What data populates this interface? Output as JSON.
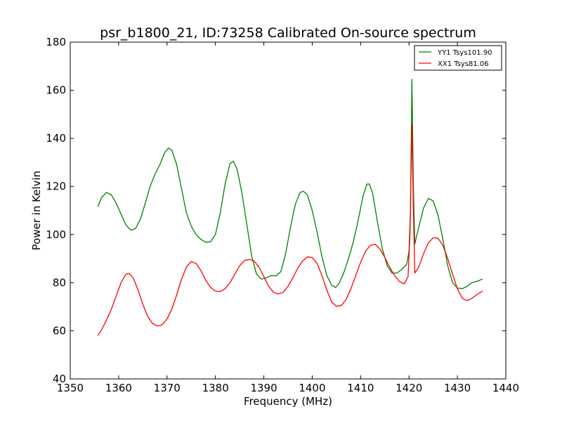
{
  "chart_data": {
    "type": "line",
    "title": "psr_b1800_21, ID:73258 Calibrated On-source spectrum",
    "xlabel": "Frequency (MHz)",
    "ylabel": "Power in Kelvin",
    "xlim": [
      1350,
      1440
    ],
    "ylim": [
      40,
      180
    ],
    "x_ticks": [
      "1350",
      "1360",
      "1370",
      "1380",
      "1390",
      "1400",
      "1410",
      "1420",
      "1430",
      "1440"
    ],
    "y_ticks": [
      "40",
      "60",
      "80",
      "100",
      "120",
      "140",
      "160",
      "180"
    ],
    "grid": false,
    "legend_position": "top-right",
    "series": [
      {
        "name": "YY1 Tsys101.90",
        "color": "#008000",
        "points": [
          [
            1355.7,
            111.5
          ],
          [
            1356.5,
            115.5
          ],
          [
            1357.5,
            117.5
          ],
          [
            1358.5,
            116.5
          ],
          [
            1359.5,
            113
          ],
          [
            1360.5,
            108.5
          ],
          [
            1361.5,
            104
          ],
          [
            1362.5,
            101.8
          ],
          [
            1363.5,
            102.5
          ],
          [
            1364.5,
            106.5
          ],
          [
            1365.5,
            113
          ],
          [
            1366.5,
            120
          ],
          [
            1367.5,
            125
          ],
          [
            1368.5,
            129
          ],
          [
            1369.5,
            134
          ],
          [
            1370.3,
            136
          ],
          [
            1371,
            135
          ],
          [
            1372,
            129
          ],
          [
            1373,
            119
          ],
          [
            1374,
            109
          ],
          [
            1375,
            103.5
          ],
          [
            1376,
            100
          ],
          [
            1377,
            98
          ],
          [
            1378,
            96.8
          ],
          [
            1379,
            97
          ],
          [
            1380,
            100
          ],
          [
            1381,
            109
          ],
          [
            1382,
            121
          ],
          [
            1383,
            129.5
          ],
          [
            1383.7,
            130.5
          ],
          [
            1384.5,
            127
          ],
          [
            1385.5,
            117
          ],
          [
            1386.5,
            104
          ],
          [
            1387.5,
            91
          ],
          [
            1388.5,
            83.5
          ],
          [
            1389.5,
            81.5
          ],
          [
            1390.5,
            82
          ],
          [
            1391.5,
            83
          ],
          [
            1392.5,
            82.8
          ],
          [
            1393.5,
            84.5
          ],
          [
            1394.5,
            92
          ],
          [
            1395.5,
            103
          ],
          [
            1396.5,
            112.5
          ],
          [
            1397.5,
            117.5
          ],
          [
            1398.2,
            118
          ],
          [
            1399,
            116.5
          ],
          [
            1400,
            110
          ],
          [
            1401,
            101
          ],
          [
            1402,
            91
          ],
          [
            1403,
            83
          ],
          [
            1404,
            79
          ],
          [
            1404.8,
            78
          ],
          [
            1405.5,
            79.5
          ],
          [
            1406.5,
            84
          ],
          [
            1407.5,
            90
          ],
          [
            1408.5,
            97
          ],
          [
            1409.5,
            106
          ],
          [
            1410.5,
            116
          ],
          [
            1411.3,
            121
          ],
          [
            1411.8,
            121
          ],
          [
            1412.5,
            117
          ],
          [
            1413.5,
            105
          ],
          [
            1414.5,
            94
          ],
          [
            1415.5,
            87
          ],
          [
            1416.5,
            84
          ],
          [
            1417.5,
            84
          ],
          [
            1418.5,
            85.5
          ],
          [
            1419.5,
            87.5
          ],
          [
            1420,
            93
          ],
          [
            1420.3,
            110
          ],
          [
            1420.6,
            164.5
          ],
          [
            1420.9,
            120
          ],
          [
            1421.2,
            96
          ],
          [
            1422,
            103
          ],
          [
            1423,
            111
          ],
          [
            1424,
            115
          ],
          [
            1425,
            114
          ],
          [
            1426,
            108
          ],
          [
            1427,
            98
          ],
          [
            1428,
            87
          ],
          [
            1429,
            80
          ],
          [
            1430,
            77.8
          ],
          [
            1431,
            77.5
          ],
          [
            1432,
            78.5
          ],
          [
            1433,
            80
          ],
          [
            1434,
            80.5
          ],
          [
            1435.2,
            81.5
          ]
        ]
      },
      {
        "name": "XX1 Tsys81.06",
        "color": "#ff0000",
        "points": [
          [
            1355.7,
            58
          ],
          [
            1356.5,
            60.5
          ],
          [
            1357.5,
            64.5
          ],
          [
            1358.5,
            69
          ],
          [
            1359.5,
            74.5
          ],
          [
            1360.5,
            80
          ],
          [
            1361.5,
            83.5
          ],
          [
            1362.2,
            83.8
          ],
          [
            1363,
            82
          ],
          [
            1364,
            77
          ],
          [
            1365,
            71
          ],
          [
            1366,
            66
          ],
          [
            1367,
            63
          ],
          [
            1368,
            62
          ],
          [
            1369,
            62.5
          ],
          [
            1370,
            65
          ],
          [
            1371,
            69
          ],
          [
            1372,
            75
          ],
          [
            1373,
            81.5
          ],
          [
            1374,
            86.5
          ],
          [
            1375,
            88.8
          ],
          [
            1376,
            88
          ],
          [
            1377,
            85
          ],
          [
            1378,
            81
          ],
          [
            1379,
            78
          ],
          [
            1380,
            76.5
          ],
          [
            1381,
            76.3
          ],
          [
            1382,
            77.5
          ],
          [
            1383,
            80
          ],
          [
            1384,
            83.5
          ],
          [
            1385,
            87
          ],
          [
            1386,
            89.2
          ],
          [
            1387,
            89.7
          ],
          [
            1388,
            89
          ],
          [
            1389,
            86.5
          ],
          [
            1390,
            82.5
          ],
          [
            1391,
            78.5
          ],
          [
            1392,
            76
          ],
          [
            1393,
            75.3
          ],
          [
            1394,
            76
          ],
          [
            1395,
            78.5
          ],
          [
            1396,
            82
          ],
          [
            1397,
            86
          ],
          [
            1398,
            89
          ],
          [
            1399,
            90.7
          ],
          [
            1400,
            90.5
          ],
          [
            1401,
            88
          ],
          [
            1402,
            83
          ],
          [
            1403,
            77
          ],
          [
            1404,
            72
          ],
          [
            1405,
            70.2
          ],
          [
            1406,
            70.5
          ],
          [
            1407,
            73
          ],
          [
            1408,
            77.5
          ],
          [
            1409,
            83
          ],
          [
            1410,
            88.5
          ],
          [
            1411,
            93
          ],
          [
            1412,
            95.5
          ],
          [
            1413,
            96
          ],
          [
            1414,
            94
          ],
          [
            1415,
            90.5
          ],
          [
            1416,
            86.5
          ],
          [
            1417,
            83
          ],
          [
            1418,
            80.5
          ],
          [
            1419,
            79.5
          ],
          [
            1419.8,
            82.5
          ],
          [
            1420.2,
            100
          ],
          [
            1420.6,
            146
          ],
          [
            1420.9,
            110
          ],
          [
            1421.2,
            84
          ],
          [
            1422,
            86.5
          ],
          [
            1423,
            92
          ],
          [
            1424,
            96.5
          ],
          [
            1425,
            98.7
          ],
          [
            1426,
            98.5
          ],
          [
            1427,
            95.5
          ],
          [
            1428,
            90
          ],
          [
            1429,
            83.5
          ],
          [
            1430,
            77.5
          ],
          [
            1431,
            73.5
          ],
          [
            1432,
            72.5
          ],
          [
            1433,
            73.5
          ],
          [
            1434,
            75
          ],
          [
            1435.2,
            76.5
          ]
        ]
      }
    ]
  }
}
